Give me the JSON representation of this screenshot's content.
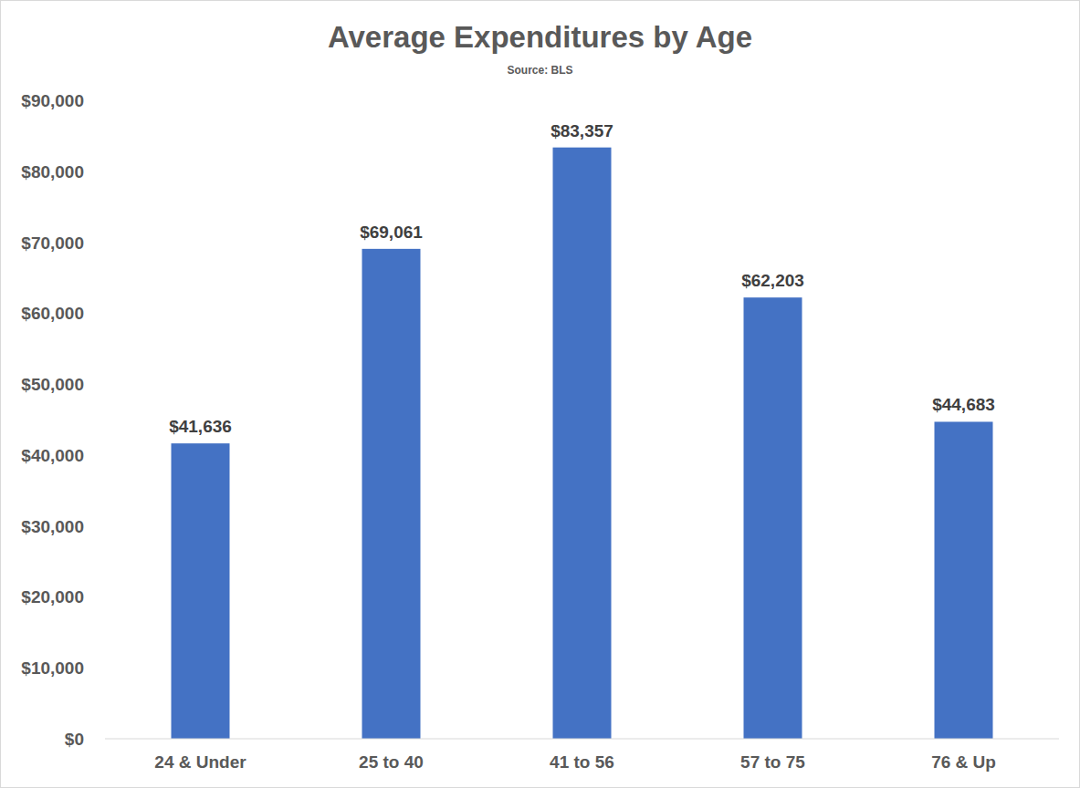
{
  "chart_data": {
    "type": "bar",
    "title": "Average Expenditures by Age",
    "subtitle": "Source: BLS",
    "categories": [
      "24 & Under",
      "25 to 40",
      "41 to 56",
      "57 to 75",
      "76 & Up"
    ],
    "values": [
      41636,
      69061,
      83357,
      62203,
      44683
    ],
    "value_labels": [
      "$41,636",
      "$69,061",
      "$83,357",
      "$62,203",
      "$44,683"
    ],
    "color": "#4472c4",
    "ylim": [
      0,
      90000
    ],
    "yticks": [
      {
        "value": 0,
        "label": "$0"
      },
      {
        "value": 10000,
        "label": "$10,000"
      },
      {
        "value": 20000,
        "label": "$20,000"
      },
      {
        "value": 30000,
        "label": "$30,000"
      },
      {
        "value": 40000,
        "label": "$40,000"
      },
      {
        "value": 50000,
        "label": "$50,000"
      },
      {
        "value": 60000,
        "label": "$60,000"
      },
      {
        "value": 70000,
        "label": "$70,000"
      },
      {
        "value": 80000,
        "label": "$80,000"
      },
      {
        "value": 90000,
        "label": "$90,000"
      }
    ],
    "grid": false,
    "data_labels": true
  }
}
